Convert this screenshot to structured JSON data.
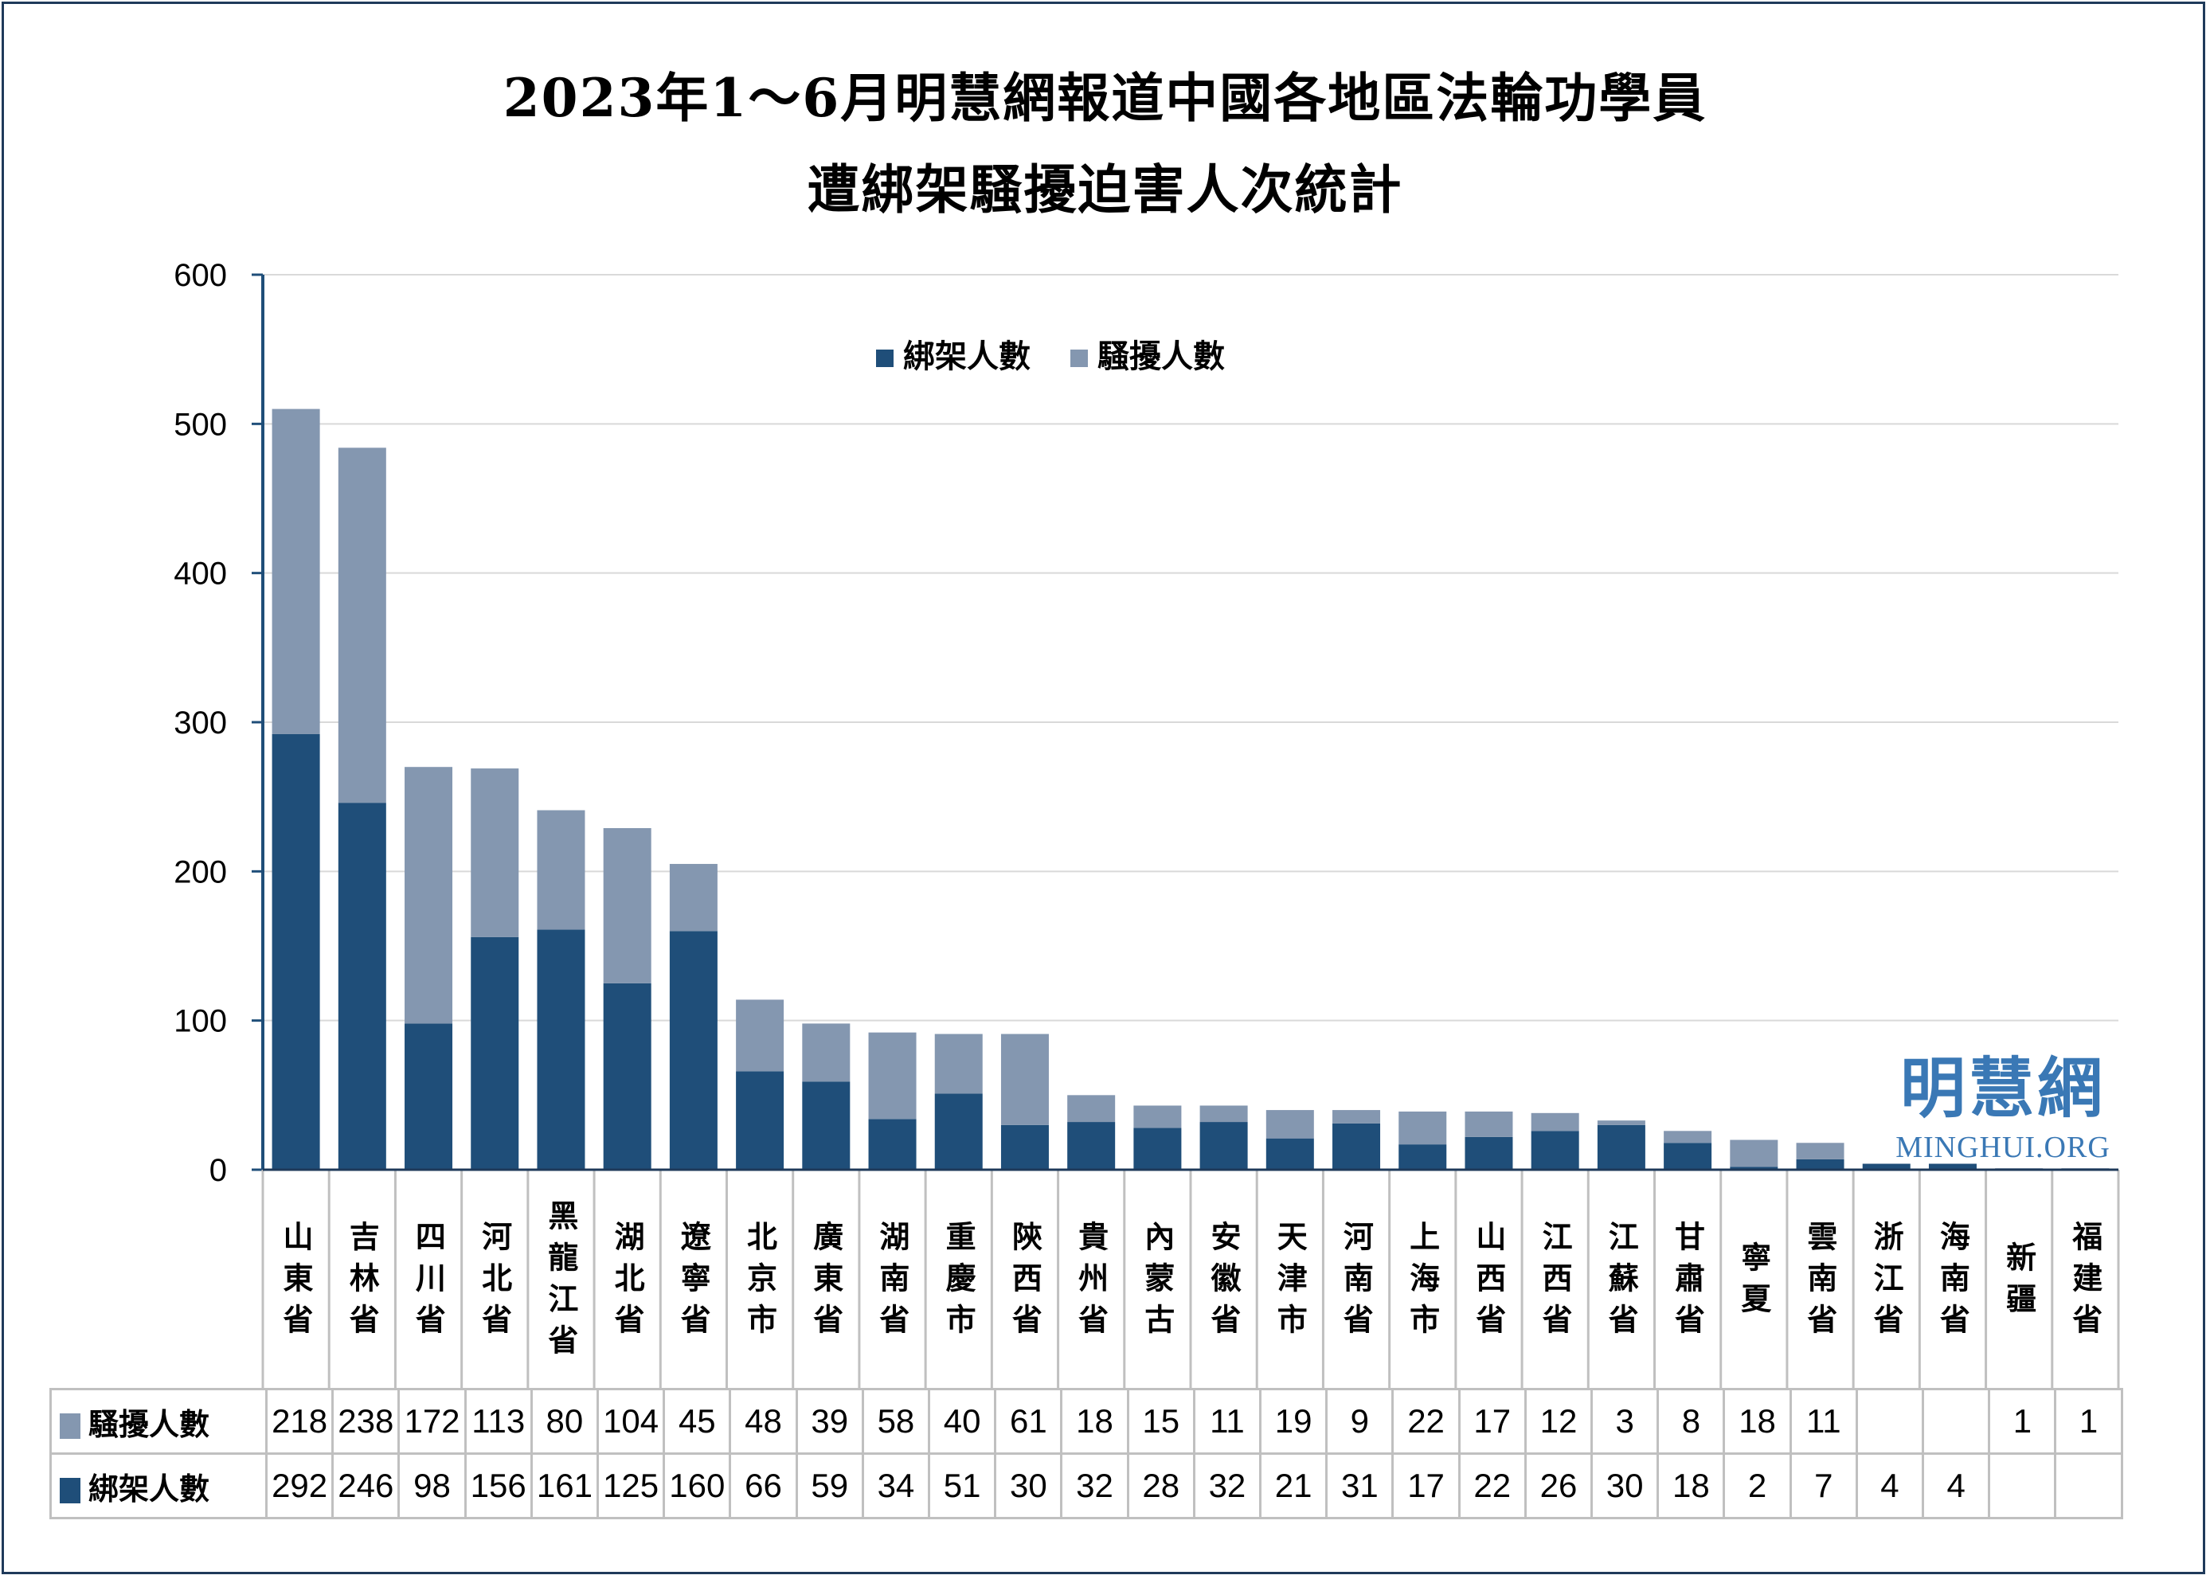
{
  "chart_data": {
    "type": "bar",
    "stacked": true,
    "title": "2023年1～6月明慧網報道中國各地區法輪功學員",
    "subtitle": "遭綁架騷擾迫害人次統計",
    "categories": [
      "山東省",
      "吉林省",
      "四川省",
      "河北省",
      "黑龍江省",
      "湖北省",
      "遼寧省",
      "北京市",
      "廣東省",
      "湖南省",
      "重慶市",
      "陝西省",
      "貴州省",
      "內蒙古",
      "安徽省",
      "天津市",
      "河南省",
      "上海市",
      "山西省",
      "江西省",
      "江蘇省",
      "甘肅省",
      "寧夏",
      "雲南省",
      "浙江省",
      "海南省",
      "新疆",
      "福建省"
    ],
    "series": [
      {
        "name": "綁架人數",
        "color": "#1f4e79",
        "values": [
          292,
          246,
          98,
          156,
          161,
          125,
          160,
          66,
          59,
          34,
          51,
          30,
          32,
          28,
          32,
          21,
          31,
          17,
          22,
          26,
          30,
          18,
          2,
          7,
          4,
          4,
          null,
          null
        ]
      },
      {
        "name": "騷擾人數",
        "color": "#8497b0",
        "values": [
          218,
          238,
          172,
          113,
          80,
          104,
          45,
          48,
          39,
          58,
          40,
          61,
          18,
          15,
          11,
          19,
          9,
          22,
          17,
          12,
          3,
          8,
          18,
          11,
          null,
          null,
          1,
          1
        ]
      }
    ],
    "yticks": [
      0,
      100,
      200,
      300,
      400,
      500,
      600
    ],
    "ylim": [
      0,
      600
    ],
    "grid": true,
    "legend": "top-center",
    "data_table": true
  },
  "watermark": {
    "zh": "明慧網",
    "en": "MINGHUI.ORG"
  }
}
